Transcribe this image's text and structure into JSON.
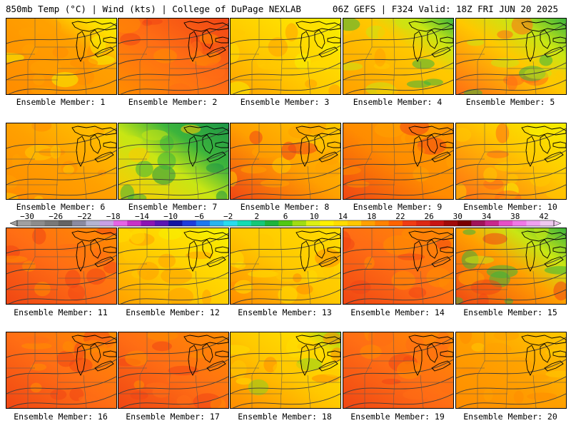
{
  "header": {
    "left": "850mb Temp (°C) | Wind (kts) | College of DuPage NEXLAB",
    "right": "06Z GEFS | F324 Valid: 18Z FRI JUN 20 2025"
  },
  "panels": [
    {
      "label": "Ensemble Member: 1",
      "scheme": "warm-yellow-green-north"
    },
    {
      "label": "Ensemble Member: 2",
      "scheme": "hot-red-orange"
    },
    {
      "label": "Ensemble Member: 3",
      "scheme": "yellow-orange"
    },
    {
      "label": "Ensemble Member: 4",
      "scheme": "green-north-orange-south"
    },
    {
      "label": "Ensemble Member: 5",
      "scheme": "green-northeast-orange-southwest"
    },
    {
      "label": "Ensemble Member: 6",
      "scheme": "orange"
    },
    {
      "label": "Ensemble Member: 7",
      "scheme": "green-cool-northeast"
    },
    {
      "label": "Ensemble Member: 8",
      "scheme": "orange-red-west"
    },
    {
      "label": "Ensemble Member: 9",
      "scheme": "orange-red"
    },
    {
      "label": "Ensemble Member: 10",
      "scheme": "yellow-orange-red-west"
    },
    {
      "label": "Ensemble Member: 11",
      "scheme": "red-orange"
    },
    {
      "label": "Ensemble Member: 12",
      "scheme": "yellow-orange"
    },
    {
      "label": "Ensemble Member: 13",
      "scheme": "orange-yellow"
    },
    {
      "label": "Ensemble Member: 14",
      "scheme": "red-orange"
    },
    {
      "label": "Ensemble Member: 15",
      "scheme": "green-northeast-red-southwest"
    },
    {
      "label": "Ensemble Member: 16",
      "scheme": "red-orange"
    },
    {
      "label": "Ensemble Member: 17",
      "scheme": "red-orange"
    },
    {
      "label": "Ensemble Member: 18",
      "scheme": "orange-yellow-green-north"
    },
    {
      "label": "Ensemble Member: 19",
      "scheme": "red-orange"
    },
    {
      "label": "Ensemble Member: 20",
      "scheme": "orange"
    }
  ],
  "colorbar": {
    "ticks": [
      "−30",
      "−26",
      "−22",
      "−18",
      "−14",
      "−10",
      "−6",
      "−2",
      "2",
      "6",
      "10",
      "14",
      "18",
      "22",
      "26",
      "30",
      "34",
      "38",
      "42"
    ],
    "colors": [
      "#a0a0a0",
      "#8c8c8c",
      "#787878",
      "#646464",
      "#8a8aa0",
      "#b4b4d2",
      "#c8a0e6",
      "#e664e6",
      "#c832c8",
      "#8c14b4",
      "#5a14b4",
      "#1414a0",
      "#1e3cdc",
      "#1e78f0",
      "#28b4f0",
      "#28dcf0",
      "#14dcb4",
      "#14c878",
      "#1eb43c",
      "#50c814",
      "#a0dc14",
      "#dcf014",
      "#fff000",
      "#ffdc00",
      "#ffc800",
      "#ffa000",
      "#ff8200",
      "#ff6400",
      "#f03c14",
      "#dc2814",
      "#c81414",
      "#a00a0a",
      "#780000",
      "#a0145a",
      "#c8288c",
      "#e650c8",
      "#f078e6",
      "#f0a0f0",
      "#f0c8f0"
    ]
  }
}
